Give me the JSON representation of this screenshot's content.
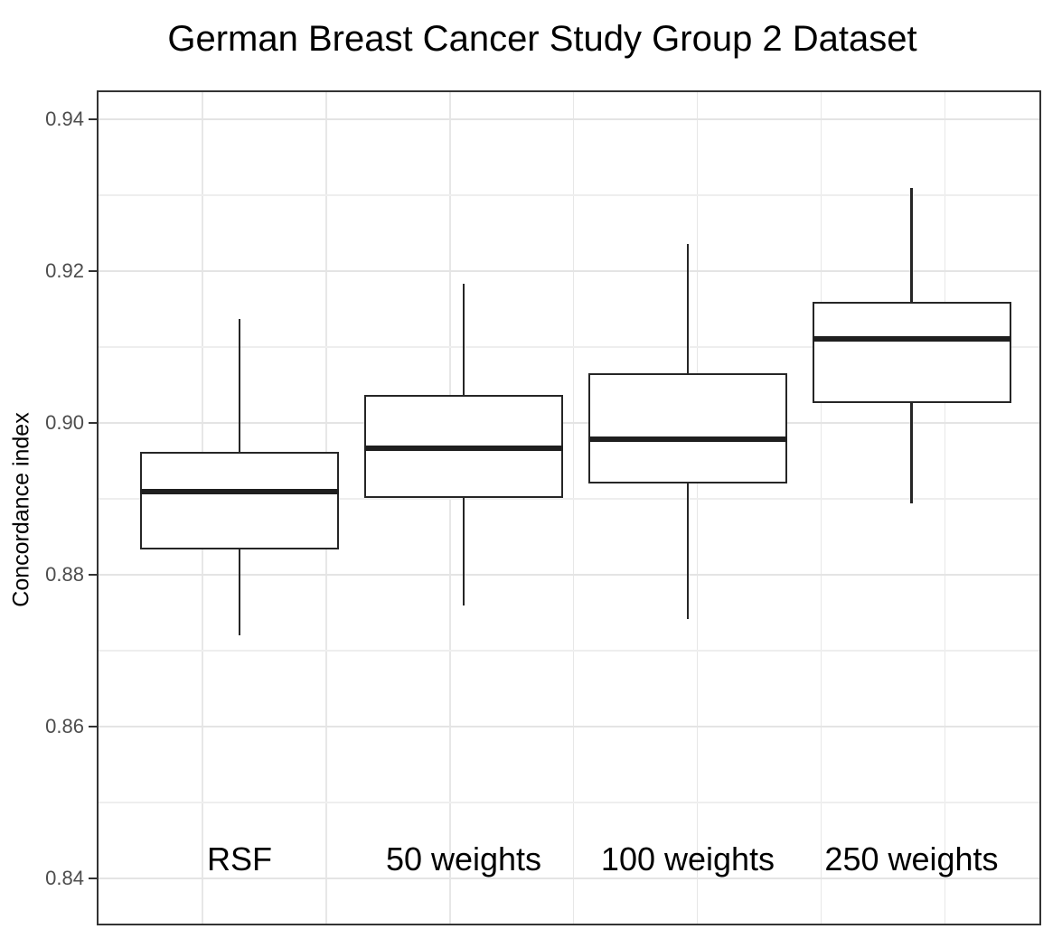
{
  "chart_data": {
    "type": "boxplot",
    "title": "German Breast Cancer Study Group 2 Dataset",
    "xlabel": "",
    "ylabel": "Concordance index",
    "ylim": [
      0.8338,
      0.9438
    ],
    "grid": true,
    "legend_position": "none",
    "y_major_ticks": [
      {
        "value": 0.94,
        "label": "0.94"
      },
      {
        "value": 0.92,
        "label": "0.92"
      },
      {
        "value": 0.9,
        "label": "0.90"
      },
      {
        "value": 0.88,
        "label": "0.88"
      },
      {
        "value": 0.86,
        "label": "0.86"
      },
      {
        "value": 0.84,
        "label": "0.84"
      }
    ],
    "y_minor_gridlines": [
      0.93,
      0.91,
      0.89,
      0.87,
      0.85
    ],
    "categories": [
      "RSF",
      "50 weights",
      "100 weights",
      "250 weights"
    ],
    "series": [
      {
        "name": "RSF",
        "whisker_low": 0.872,
        "q1": 0.8835,
        "median": 0.891,
        "q3": 0.896,
        "whisker_high": 0.9137
      },
      {
        "name": "50 weights",
        "whisker_low": 0.876,
        "q1": 0.8903,
        "median": 0.8967,
        "q3": 0.9035,
        "whisker_high": 0.9183
      },
      {
        "name": "100 weights",
        "whisker_low": 0.8742,
        "q1": 0.8922,
        "median": 0.8978,
        "q3": 0.9064,
        "whisker_high": 0.9236
      },
      {
        "name": "250 weights",
        "whisker_low": 0.8894,
        "q1": 0.9027,
        "median": 0.9111,
        "q3": 0.9158,
        "whisker_high": 0.9309
      }
    ],
    "colors": {
      "box_stroke": "#262626",
      "box_fill": "#ffffff",
      "grid_major": "#e4e4e4",
      "grid_minor": "#eeeeee",
      "axis_text": "#4d4d4d",
      "tick_mark": "#333333",
      "panel_border": "#333333",
      "title_text": "#000000",
      "background": "#ffffff"
    }
  }
}
